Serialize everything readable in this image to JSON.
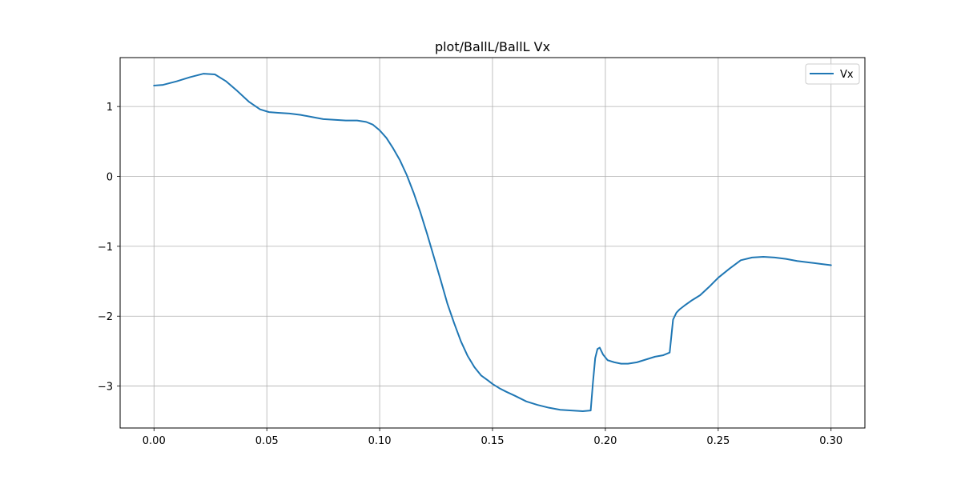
{
  "chart_data": {
    "type": "line",
    "title": "plot/BallL/BallL Vx",
    "xlabel": "",
    "ylabel": "",
    "xlim": [
      -0.015,
      0.315
    ],
    "ylim": [
      -3.6,
      1.7
    ],
    "xticks": [
      0.0,
      0.05,
      0.1,
      0.15,
      0.2,
      0.25,
      0.3
    ],
    "xtick_labels": [
      "0.00",
      "0.05",
      "0.10",
      "0.15",
      "0.20",
      "0.25",
      "0.30"
    ],
    "yticks": [
      1,
      0,
      -1,
      -2,
      -3
    ],
    "ytick_labels": [
      "1",
      "0",
      "−1",
      "−2",
      "−3"
    ],
    "grid": true,
    "legend_position": "top-right",
    "series": [
      {
        "name": "Vx",
        "color": "#1f77b4",
        "x": [
          0.0,
          0.004,
          0.01,
          0.016,
          0.022,
          0.027,
          0.032,
          0.037,
          0.042,
          0.047,
          0.051,
          0.055,
          0.06,
          0.065,
          0.07,
          0.075,
          0.08,
          0.085,
          0.09,
          0.094,
          0.097,
          0.1,
          0.103,
          0.106,
          0.109,
          0.112,
          0.115,
          0.118,
          0.121,
          0.124,
          0.127,
          0.13,
          0.133,
          0.136,
          0.139,
          0.142,
          0.145,
          0.148,
          0.15,
          0.153,
          0.156,
          0.16,
          0.165,
          0.17,
          0.175,
          0.18,
          0.185,
          0.19,
          0.1935,
          0.1945,
          0.1955,
          0.1965,
          0.1975,
          0.199,
          0.201,
          0.204,
          0.207,
          0.21,
          0.214,
          0.218,
          0.222,
          0.2255,
          0.2285,
          0.23,
          0.2315,
          0.233,
          0.235,
          0.238,
          0.242,
          0.246,
          0.25,
          0.255,
          0.26,
          0.265,
          0.27,
          0.275,
          0.28,
          0.285,
          0.29,
          0.295,
          0.3
        ],
        "y": [
          1.3,
          1.31,
          1.36,
          1.42,
          1.47,
          1.46,
          1.36,
          1.22,
          1.07,
          0.96,
          0.92,
          0.91,
          0.9,
          0.88,
          0.85,
          0.82,
          0.81,
          0.8,
          0.8,
          0.78,
          0.74,
          0.66,
          0.55,
          0.4,
          0.23,
          0.02,
          -0.23,
          -0.51,
          -0.82,
          -1.15,
          -1.48,
          -1.82,
          -2.1,
          -2.36,
          -2.57,
          -2.73,
          -2.85,
          -2.92,
          -2.97,
          -3.03,
          -3.08,
          -3.14,
          -3.22,
          -3.27,
          -3.31,
          -3.34,
          -3.35,
          -3.36,
          -3.35,
          -2.95,
          -2.6,
          -2.47,
          -2.45,
          -2.55,
          -2.63,
          -2.66,
          -2.68,
          -2.68,
          -2.66,
          -2.62,
          -2.58,
          -2.56,
          -2.52,
          -2.05,
          -1.95,
          -1.9,
          -1.85,
          -1.78,
          -1.7,
          -1.58,
          -1.45,
          -1.32,
          -1.2,
          -1.16,
          -1.15,
          -1.16,
          -1.18,
          -1.21,
          -1.23,
          -1.25,
          -1.27
        ]
      }
    ]
  }
}
